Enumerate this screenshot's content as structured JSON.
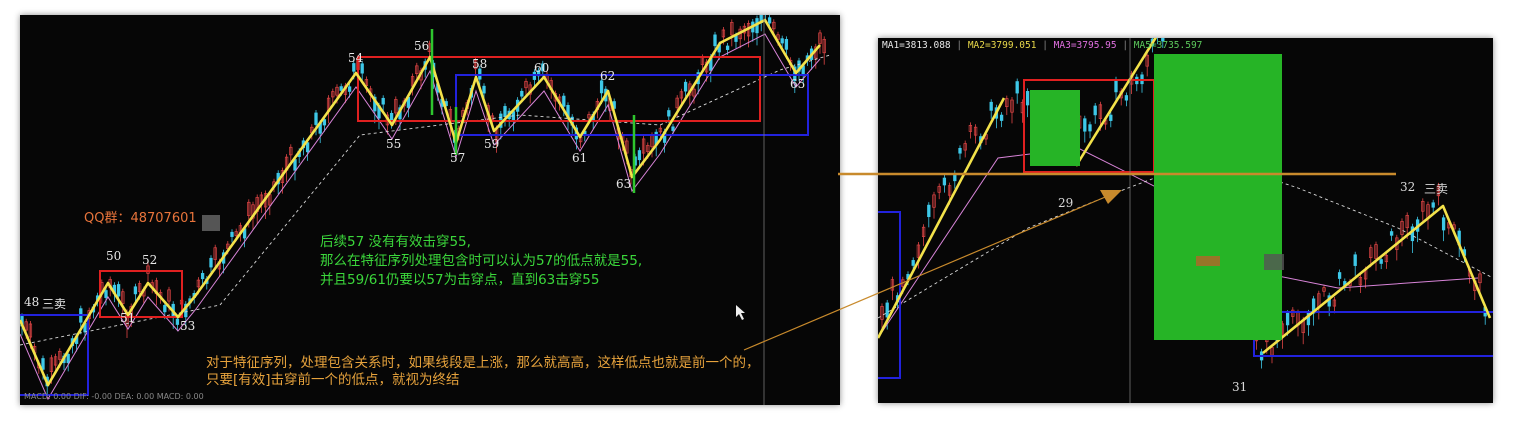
{
  "colors": {
    "yellow_line": "#f3e24a",
    "red_box": "#e02020",
    "blue_box": "#2222dd",
    "green_mark": "#2ec52e",
    "orange_arrow": "#c88a2c",
    "candle_up": "#e04545",
    "candle_down": "#3ec8e8",
    "ma_pink": "#d884d8",
    "ma_white": "#d8d8d8",
    "annotation_green": "#3bd73b",
    "annotation_orange": "#e6a23c"
  },
  "left_chart": {
    "qq_group": "QQ群：48707601",
    "labels": [
      "48",
      "三卖",
      "50",
      "51",
      "52",
      "53",
      "54",
      "55",
      "56",
      "57",
      "58",
      "59",
      "60",
      "61",
      "62",
      "63",
      "65"
    ],
    "note_green": [
      "后续57 没有有效击穿55,",
      "那么在特征序列处理包含时可以认为57的低点就是55,",
      "并且59/61仍要以57为击穿点，直到63击穿55"
    ],
    "note_orange": [
      "对于特征序列，处理包含关系时，如果线段是上涨，那么就高高，这样低点也就是前一个的，",
      "只要[有效]击穿前一个的低点，就视为终结"
    ],
    "bottom_bar": "MACD: 0.00  DIF: -0.00  DEA: 0.00  MACD: 0.00"
  },
  "right_chart": {
    "ma_header": [
      {
        "text": "MA1=3813.088",
        "color": "#e8e8e8"
      },
      {
        "text": "MA2=3799.051",
        "color": "#e8d84a"
      },
      {
        "text": "MA3=3795.95",
        "color": "#e070e0"
      },
      {
        "text": "MA5=3735.597",
        "color": "#5cc85c"
      }
    ],
    "labels": [
      "29",
      "31",
      "32",
      "三卖"
    ]
  },
  "chart_data": [
    {
      "type": "line",
      "chart": "left",
      "series": [
        {
          "name": "线段",
          "points": [
            {
              "label": "48",
              "dir": "low"
            },
            {
              "label": "50",
              "dir": "high"
            },
            {
              "label": "51",
              "dir": "low"
            },
            {
              "label": "52",
              "dir": "high"
            },
            {
              "label": "53",
              "dir": "low"
            },
            {
              "label": "54",
              "dir": "high"
            },
            {
              "label": "55",
              "dir": "low"
            },
            {
              "label": "56",
              "dir": "high"
            },
            {
              "label": "57",
              "dir": "low"
            },
            {
              "label": "58",
              "dir": "high"
            },
            {
              "label": "59",
              "dir": "low"
            },
            {
              "label": "60",
              "dir": "high"
            },
            {
              "label": "61",
              "dir": "low"
            },
            {
              "label": "62",
              "dir": "high"
            },
            {
              "label": "63",
              "dir": "low"
            },
            {
              "label": "65",
              "dir": "low"
            }
          ]
        }
      ]
    },
    {
      "type": "line",
      "chart": "right",
      "series": [
        {
          "name": "MA1",
          "value": 3813.088
        },
        {
          "name": "MA2",
          "value": 3799.051
        },
        {
          "name": "MA3",
          "value": 3795.95
        },
        {
          "name": "MA5",
          "value": 3735.597
        }
      ]
    }
  ]
}
